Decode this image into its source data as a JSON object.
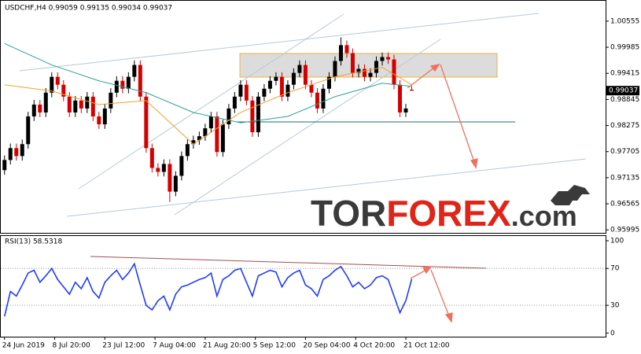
{
  "chart_data": [
    {
      "type": "candlestick",
      "title": "USDCHF,H4 0.99059 0.99135 0.99034 0.99037",
      "xlim": [
        -0.5,
        70
      ],
      "ylim": [
        0.9593,
        1.01
      ],
      "yticks": [
        1.00555,
        0.99985,
        0.99415,
        0.98845,
        0.98275,
        0.97705,
        0.97135,
        0.96565,
        0.95995
      ],
      "up_color": "#000000",
      "down_color": "#d40000",
      "open": [
        0.973,
        0.97522,
        0.97781,
        0.97608,
        0.97868,
        0.98474,
        0.98733,
        0.9856,
        0.98993,
        0.99339,
        0.99166,
        0.98906,
        0.9856,
        0.9882,
        0.98647,
        0.98906,
        0.98474,
        0.98301,
        0.98647,
        0.98993,
        0.99252,
        0.99079,
        0.99339,
        0.99598,
        0.98906,
        0.97781,
        0.97349,
        0.97262,
        0.97435,
        0.9683,
        0.97176,
        0.97608,
        0.97868,
        0.97954,
        0.98041,
        0.98214,
        0.98474,
        0.97695,
        0.98301,
        0.98647,
        0.98906,
        0.99166,
        0.9882,
        0.98128,
        0.98906,
        0.99079,
        0.99252,
        0.99339,
        0.98906,
        0.99166,
        0.99425,
        0.99598,
        0.99166,
        0.98993,
        0.98647,
        0.99079,
        0.99339,
        0.99685,
        1.00031,
        0.99858,
        0.99425,
        0.99512,
        0.99339,
        0.99425,
        0.99685,
        0.99771,
        0.99719,
        0.99166,
        0.9856,
        0.99059
      ],
      "high": [
        0.97622,
        0.97881,
        0.97881,
        0.97968,
        0.98574,
        0.98833,
        0.98833,
        0.99093,
        0.99439,
        0.99439,
        0.99266,
        0.99006,
        0.9892,
        0.9892,
        0.99006,
        0.99006,
        0.98574,
        0.98747,
        0.99093,
        0.99352,
        0.99352,
        0.99439,
        0.99698,
        0.99698,
        0.99006,
        0.97881,
        0.97449,
        0.97535,
        0.97535,
        0.97276,
        0.97708,
        0.97968,
        0.98054,
        0.98141,
        0.98314,
        0.98574,
        0.98574,
        0.98401,
        0.98747,
        0.99006,
        0.99266,
        0.99266,
        0.9892,
        0.99006,
        0.99179,
        0.99352,
        0.99439,
        0.99439,
        0.99266,
        0.99525,
        0.99698,
        0.99698,
        0.99266,
        0.99093,
        0.99179,
        0.99439,
        0.99785,
        1.002,
        1.00131,
        0.99958,
        0.99612,
        0.99612,
        0.99525,
        0.99785,
        0.99871,
        0.99871,
        0.99819,
        0.99266,
        0.98747,
        0.99135
      ],
      "low": [
        0.972,
        0.97422,
        0.97508,
        0.97508,
        0.97768,
        0.98374,
        0.9846,
        0.9846,
        0.98893,
        0.99066,
        0.98806,
        0.9846,
        0.9846,
        0.98547,
        0.98547,
        0.98374,
        0.98201,
        0.98201,
        0.98547,
        0.98893,
        0.98979,
        0.98979,
        0.99239,
        0.98806,
        0.97681,
        0.97249,
        0.97162,
        0.97162,
        0.96605,
        0.9673,
        0.97076,
        0.97508,
        0.97768,
        0.97854,
        0.97941,
        0.98114,
        0.97595,
        0.97595,
        0.98201,
        0.98547,
        0.98806,
        0.9872,
        0.98028,
        0.98028,
        0.98806,
        0.98979,
        0.99152,
        0.98806,
        0.98806,
        0.99066,
        0.99325,
        0.99066,
        0.98893,
        0.98547,
        0.98547,
        0.98979,
        0.99239,
        0.99585,
        0.99758,
        0.99325,
        0.99325,
        0.99239,
        0.99239,
        0.99325,
        0.99585,
        0.99619,
        0.99066,
        0.9846,
        0.9846,
        0.99034
      ],
      "close": [
        0.97522,
        0.97781,
        0.97608,
        0.97868,
        0.98474,
        0.98733,
        0.9856,
        0.98993,
        0.99339,
        0.99166,
        0.98906,
        0.9856,
        0.9882,
        0.98647,
        0.98906,
        0.98474,
        0.98301,
        0.98647,
        0.98993,
        0.99252,
        0.99079,
        0.99339,
        0.99598,
        0.98906,
        0.97781,
        0.97349,
        0.97262,
        0.97435,
        0.9683,
        0.97176,
        0.97608,
        0.97868,
        0.97954,
        0.98041,
        0.98214,
        0.98474,
        0.97695,
        0.98301,
        0.98647,
        0.98906,
        0.99166,
        0.9882,
        0.98128,
        0.98906,
        0.99079,
        0.99252,
        0.99339,
        0.98906,
        0.99166,
        0.99425,
        0.99598,
        0.99166,
        0.98993,
        0.98647,
        0.99079,
        0.99339,
        0.99685,
        1.00031,
        0.99858,
        0.99425,
        0.99512,
        0.99339,
        0.99425,
        0.99685,
        0.99771,
        0.99719,
        0.99166,
        0.9856,
        0.98647,
        0.99037
      ],
      "series": [
        {
          "color": "#2aa198",
          "x": [
            0,
            8,
            16,
            24,
            32,
            40,
            48,
            56,
            64,
            69
          ],
          "values": [
            1.00066,
            0.99598,
            0.99252,
            0.98993,
            0.9856,
            0.98335,
            0.98474,
            0.98906,
            0.992,
            0.99131
          ]
        },
        {
          "color": "#f0a030",
          "x": [
            0,
            8,
            16,
            24,
            32,
            40,
            48,
            56,
            64,
            69
          ],
          "values": [
            0.99166,
            0.99027,
            0.98733,
            0.9882,
            0.97868,
            0.9856,
            0.98993,
            0.99339,
            0.99546,
            0.99166
          ]
        }
      ],
      "watermark": [
        "TOR",
        "FOREX",
        ".com"
      ]
    },
    {
      "type": "line",
      "title": "RSI(13) 58.5318",
      "xlim": [
        -0.5,
        70
      ],
      "ylim": [
        -4,
        106
      ],
      "yticks": [
        100,
        70,
        30,
        0
      ],
      "levels": [
        70,
        30
      ],
      "xticks": [
        {
          "value": 0,
          "label": "24 Jun 2019"
        },
        {
          "value": 8.5,
          "label": "8 Jul 20:00"
        },
        {
          "value": 17,
          "label": "23 Jul 12:00"
        },
        {
          "value": 25.5,
          "label": "7 Aug 04:00"
        },
        {
          "value": 34,
          "label": "21 Aug 20:00"
        },
        {
          "value": 42.5,
          "label": "5 Sep 12:00"
        },
        {
          "value": 51,
          "label": "20 Sep 04:00"
        },
        {
          "value": 59.5,
          "label": "4 Oct 20:00"
        },
        {
          "value": 68,
          "label": "21 Oct 12:00"
        }
      ],
      "color": "#1e3cff",
      "values": [
        18,
        45,
        40,
        52,
        65,
        68,
        55,
        62,
        70,
        58,
        50,
        42,
        55,
        48,
        60,
        45,
        38,
        55,
        62,
        68,
        58,
        65,
        75,
        52,
        30,
        25,
        35,
        40,
        25,
        42,
        50,
        52,
        55,
        58,
        60,
        65,
        40,
        58,
        62,
        68,
        70,
        55,
        40,
        62,
        65,
        68,
        66,
        50,
        60,
        65,
        68,
        52,
        48,
        40,
        58,
        62,
        68,
        72,
        62,
        50,
        55,
        48,
        52,
        60,
        62,
        58,
        40,
        22,
        35,
        58.5318
      ]
    }
  ]
}
